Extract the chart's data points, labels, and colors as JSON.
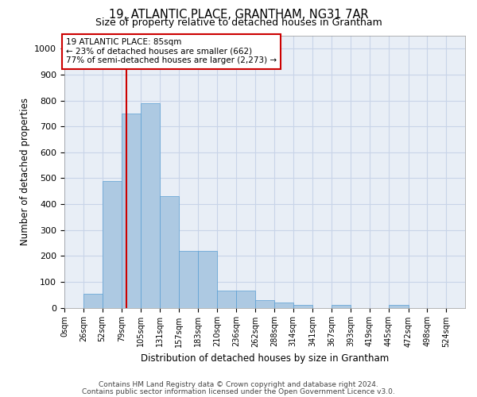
{
  "title": "19, ATLANTIC PLACE, GRANTHAM, NG31 7AR",
  "subtitle": "Size of property relative to detached houses in Grantham",
  "xlabel": "Distribution of detached houses by size in Grantham",
  "ylabel": "Number of detached properties",
  "bar_labels": [
    "0sqm",
    "26sqm",
    "52sqm",
    "79sqm",
    "105sqm",
    "131sqm",
    "157sqm",
    "183sqm",
    "210sqm",
    "236sqm",
    "262sqm",
    "288sqm",
    "314sqm",
    "341sqm",
    "367sqm",
    "393sqm",
    "419sqm",
    "445sqm",
    "472sqm",
    "498sqm",
    "524sqm"
  ],
  "bar_heights": [
    0,
    55,
    490,
    750,
    790,
    430,
    220,
    220,
    65,
    65,
    30,
    20,
    10,
    0,
    10,
    0,
    0,
    10,
    0,
    0,
    0
  ],
  "bar_color": "#adc9e2",
  "bar_edge_color": "#5a9fd4",
  "grid_color": "#c8d4e8",
  "background_color": "#e8eef6",
  "annotation_box_color": "#ffffff",
  "annotation_box_edge": "#cc0000",
  "vline_x": 85,
  "vline_color": "#cc0000",
  "annotation_line1": "19 ATLANTIC PLACE: 85sqm",
  "annotation_line2": "← 23% of detached houses are smaller (662)",
  "annotation_line3": "77% of semi-detached houses are larger (2,273) →",
  "ylim": [
    0,
    1050
  ],
  "yticks": [
    0,
    100,
    200,
    300,
    400,
    500,
    600,
    700,
    800,
    900,
    1000
  ],
  "footer1": "Contains HM Land Registry data © Crown copyright and database right 2024.",
  "footer2": "Contains public sector information licensed under the Open Government Licence v3.0.",
  "bin_edges": [
    0,
    26,
    52,
    79,
    105,
    131,
    157,
    183,
    210,
    236,
    262,
    288,
    314,
    341,
    367,
    393,
    419,
    445,
    472,
    498,
    524,
    550
  ],
  "title_fontsize": 10.5,
  "subtitle_fontsize": 9
}
